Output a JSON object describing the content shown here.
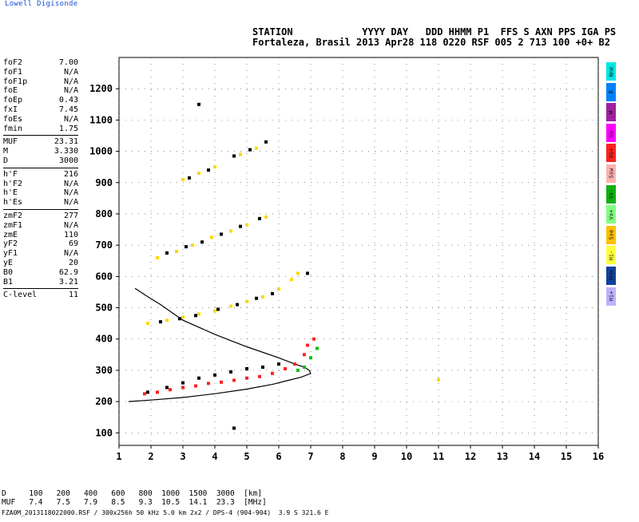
{
  "brand": "Lowell Digisonde",
  "header": {
    "line1": "STATION            YYYY DAY   DDD HHMM P1  FFS S AXN PPS IGA PS",
    "line2": "Fortaleza, Brasil 2013 Apr28 118 0220 RSF 005 2 713 100 +0+ B2"
  },
  "params": [
    [
      {
        "k": "foF2",
        "v": "7.00"
      },
      {
        "k": "foF1",
        "v": "N/A"
      },
      {
        "k": "foF1p",
        "v": "N/A"
      },
      {
        "k": "foE",
        "v": "N/A"
      },
      {
        "k": "foEp",
        "v": "0.43"
      },
      {
        "k": "fxI",
        "v": "7.45"
      },
      {
        "k": "foEs",
        "v": "N/A"
      },
      {
        "k": "fmin",
        "v": "1.75"
      }
    ],
    [
      {
        "k": "MUF",
        "v": "23.31"
      },
      {
        "k": "M",
        "v": "3.330"
      },
      {
        "k": "D",
        "v": "3000"
      }
    ],
    [
      {
        "k": "h'F",
        "v": "216"
      },
      {
        "k": "h'F2",
        "v": "N/A"
      },
      {
        "k": "h'E",
        "v": "N/A"
      },
      {
        "k": "h'Es",
        "v": "N/A"
      }
    ],
    [
      {
        "k": "zmF2",
        "v": "277"
      },
      {
        "k": "zmF1",
        "v": "N/A"
      },
      {
        "k": "zmE",
        "v": "110"
      },
      {
        "k": "yF2",
        "v": "69"
      },
      {
        "k": "yF1",
        "v": "N/A"
      },
      {
        "k": "yE",
        "v": "20"
      },
      {
        "k": "B0",
        "v": "62.9"
      },
      {
        "k": "B1",
        "v": "3.21"
      }
    ],
    [
      {
        "k": "C-level",
        "v": "11"
      }
    ]
  ],
  "legend": [
    {
      "label": "Nne",
      "color": "#00e5e5"
    },
    {
      "label": "E",
      "color": "#0080ff"
    },
    {
      "label": "W",
      "color": "#a020a0"
    },
    {
      "label": "Vo-",
      "color": "#ff00ff"
    },
    {
      "label": "Vo+",
      "color": "#ff2020"
    },
    {
      "label": "Ssw",
      "color": "#ffb0b0"
    },
    {
      "label": "Vx-",
      "color": "#10b010"
    },
    {
      "label": "Vx+",
      "color": "#80ff80"
    },
    {
      "label": "Sse",
      "color": "#ffc000"
    },
    {
      "label": "Hi-",
      "color": "#ffff40"
    },
    {
      "label": "Nnw",
      "color": "#1040a0"
    },
    {
      "label": "Hi+",
      "color": "#c0b0ff"
    }
  ],
  "footer": {
    "line1": "D     100   200   400   600   800  1000  1500  3000  [km]",
    "line2": "MUF   7.4   7.5   7.9   8.5   9.3  10.5  14.1  23.3  [MHz]",
    "file": "FZA0M_2013118022000.RSF / 300x256h 50 kHz 5.0 km 2x2 / DPS-4 (904-904)  3.9 S 321.6 E"
  },
  "chart_data": {
    "type": "scatter",
    "title": "",
    "xlabel": "",
    "ylabel": "",
    "xlim": [
      1,
      16
    ],
    "ylim": [
      60,
      1300
    ],
    "x_ticks": [
      1,
      2,
      3,
      4,
      5,
      6,
      7,
      8,
      9,
      10,
      11,
      12,
      13,
      14,
      15,
      16
    ],
    "y_ticks": [
      100,
      200,
      300,
      400,
      500,
      600,
      700,
      800,
      900,
      1000,
      1100,
      1200
    ],
    "grid": true,
    "series": [
      {
        "color": "#ff2020",
        "points": [
          [
            1.8,
            225
          ],
          [
            2.2,
            230
          ],
          [
            2.6,
            238
          ],
          [
            3.0,
            245
          ],
          [
            3.4,
            250
          ],
          [
            3.8,
            258
          ],
          [
            4.2,
            262
          ],
          [
            4.6,
            268
          ],
          [
            5.0,
            275
          ],
          [
            5.4,
            280
          ],
          [
            5.8,
            290
          ],
          [
            6.2,
            305
          ],
          [
            6.5,
            320
          ],
          [
            6.8,
            350
          ],
          [
            6.9,
            380
          ],
          [
            7.1,
            400
          ]
        ]
      },
      {
        "color": "#00c000",
        "points": [
          [
            6.6,
            300
          ],
          [
            6.8,
            310
          ],
          [
            7.0,
            340
          ],
          [
            7.2,
            370
          ]
        ]
      },
      {
        "color": "#ffd700",
        "points": [
          [
            1.9,
            450
          ],
          [
            2.5,
            460
          ],
          [
            3.0,
            470
          ],
          [
            3.5,
            480
          ],
          [
            4.0,
            490
          ],
          [
            4.5,
            505
          ],
          [
            5.0,
            520
          ],
          [
            5.5,
            535
          ],
          [
            6.0,
            560
          ],
          [
            6.4,
            590
          ],
          [
            6.6,
            610
          ],
          [
            2.2,
            660
          ],
          [
            2.8,
            680
          ],
          [
            3.3,
            700
          ],
          [
            3.9,
            725
          ],
          [
            4.5,
            745
          ],
          [
            5.0,
            765
          ],
          [
            5.6,
            790
          ],
          [
            3.0,
            910
          ],
          [
            3.5,
            930
          ],
          [
            4.0,
            950
          ],
          [
            4.8,
            990
          ],
          [
            5.3,
            1010
          ],
          [
            11.0,
            270
          ]
        ]
      },
      {
        "color": "#000000",
        "points": [
          [
            1.9,
            230
          ],
          [
            2.5,
            245
          ],
          [
            3.0,
            260
          ],
          [
            3.5,
            275
          ],
          [
            4.0,
            285
          ],
          [
            4.5,
            295
          ],
          [
            5.0,
            305
          ],
          [
            5.5,
            310
          ],
          [
            6.0,
            320
          ],
          [
            2.3,
            455
          ],
          [
            2.9,
            465
          ],
          [
            3.4,
            475
          ],
          [
            4.1,
            495
          ],
          [
            4.7,
            510
          ],
          [
            5.3,
            530
          ],
          [
            5.8,
            545
          ],
          [
            6.9,
            610
          ],
          [
            2.5,
            675
          ],
          [
            3.1,
            695
          ],
          [
            3.6,
            710
          ],
          [
            4.2,
            735
          ],
          [
            4.8,
            760
          ],
          [
            5.4,
            785
          ],
          [
            3.2,
            915
          ],
          [
            3.8,
            940
          ],
          [
            4.6,
            985
          ],
          [
            5.1,
            1005
          ],
          [
            5.6,
            1030
          ],
          [
            3.5,
            1150
          ],
          [
            4.6,
            115
          ]
        ]
      }
    ],
    "curves": [
      {
        "color": "#000000",
        "points": [
          [
            1.3,
            200
          ],
          [
            2,
            205
          ],
          [
            3,
            213
          ],
          [
            4,
            225
          ],
          [
            5,
            240
          ],
          [
            5.8,
            255
          ],
          [
            6.3,
            268
          ],
          [
            6.7,
            278
          ],
          [
            7.0,
            290
          ],
          [
            6.95,
            300
          ],
          [
            6.8,
            310
          ],
          [
            6.5,
            320
          ],
          [
            6,
            340
          ],
          [
            5,
            375
          ],
          [
            4,
            415
          ],
          [
            3,
            460
          ],
          [
            2.3,
            510
          ],
          [
            1.9,
            535
          ],
          [
            1.5,
            562
          ]
        ]
      }
    ]
  }
}
